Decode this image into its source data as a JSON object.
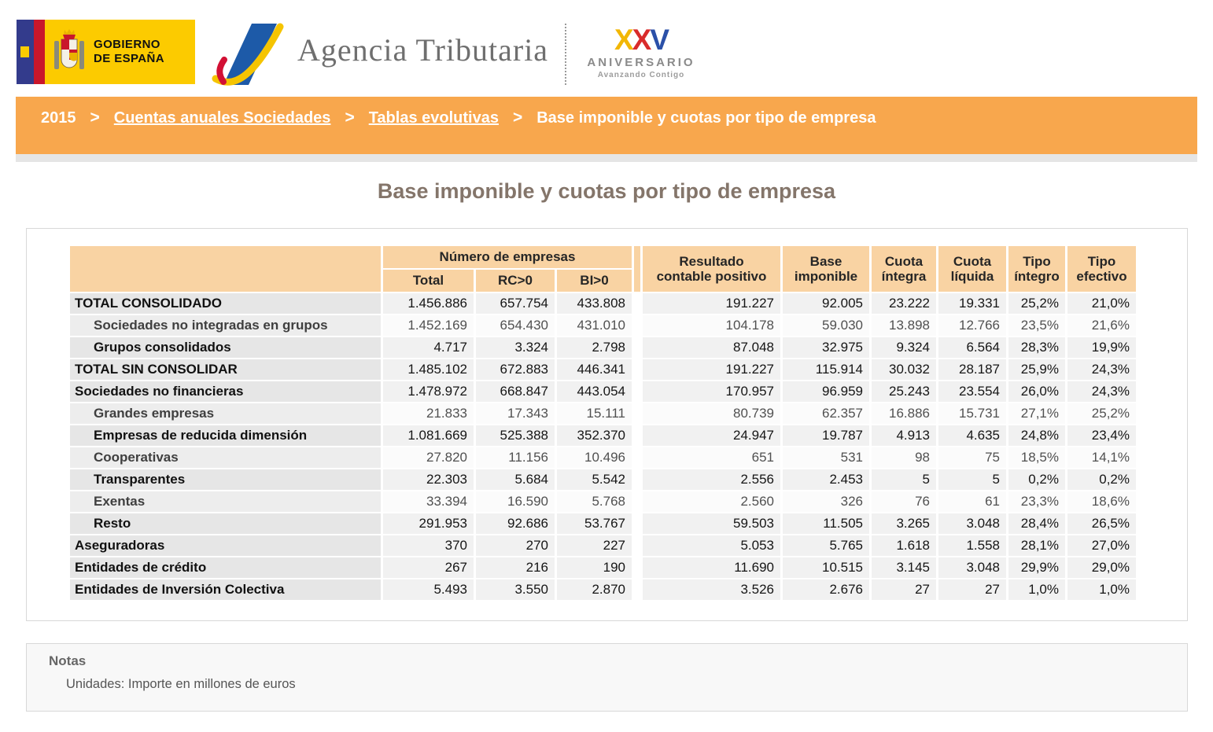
{
  "header": {
    "gobierno_logo": {
      "line1": "GOBIERNO",
      "line2": "DE ESPAÑA"
    },
    "agencia_logo_text": "Agencia Tributaria",
    "anniversary": {
      "x1": "X",
      "x2": "X",
      "v": "V",
      "line1": "ANIVERSARIO",
      "line2": "Avanzando Contigo"
    }
  },
  "breadcrumb": {
    "year": "2015",
    "separator": ">",
    "items": [
      {
        "label": "Cuentas anuales Sociedades",
        "link": true
      },
      {
        "label": "Tablas evolutivas",
        "link": true
      },
      {
        "label": "Base imponible y cuotas por tipo de empresa",
        "link": false
      }
    ]
  },
  "page_title": "Base imponible y cuotas por tipo de empresa",
  "table": {
    "group_header": "Número de empresas",
    "sub_headers": [
      "Total",
      "RC>0",
      "BI>0"
    ],
    "value_headers": [
      [
        "Resultado",
        "contable positivo"
      ],
      [
        "Base",
        "imponible"
      ],
      [
        "Cuota",
        "íntegra"
      ],
      [
        "Cuota",
        "líquida"
      ],
      [
        "Tipo",
        "íntegro"
      ],
      [
        "Tipo",
        "efectivo"
      ]
    ],
    "rows": [
      {
        "label": "TOTAL CONSOLIDADO",
        "indent": false,
        "shade": "dark",
        "values": [
          "1.456.886",
          "657.754",
          "433.808",
          "191.227",
          "92.005",
          "23.222",
          "19.331",
          "25,2%",
          "21,0%"
        ]
      },
      {
        "label": "Sociedades no integradas en grupos",
        "indent": true,
        "shade": "light",
        "values": [
          "1.452.169",
          "654.430",
          "431.010",
          "104.178",
          "59.030",
          "13.898",
          "12.766",
          "23,5%",
          "21,6%"
        ]
      },
      {
        "label": "Grupos consolidados",
        "indent": true,
        "shade": "dark",
        "values": [
          "4.717",
          "3.324",
          "2.798",
          "87.048",
          "32.975",
          "9.324",
          "6.564",
          "28,3%",
          "19,9%"
        ]
      },
      {
        "label": "TOTAL SIN CONSOLIDAR",
        "indent": false,
        "shade": "dark",
        "values": [
          "1.485.102",
          "672.883",
          "446.341",
          "191.227",
          "115.914",
          "30.032",
          "28.187",
          "25,9%",
          "24,3%"
        ]
      },
      {
        "label": "Sociedades no financieras",
        "indent": false,
        "shade": "dark",
        "values": [
          "1.478.972",
          "668.847",
          "443.054",
          "170.957",
          "96.959",
          "25.243",
          "23.554",
          "26,0%",
          "24,3%"
        ]
      },
      {
        "label": "Grandes empresas",
        "indent": true,
        "shade": "light",
        "values": [
          "21.833",
          "17.343",
          "15.111",
          "80.739",
          "62.357",
          "16.886",
          "15.731",
          "27,1%",
          "25,2%"
        ]
      },
      {
        "label": "Empresas de reducida dimensión",
        "indent": true,
        "shade": "dark",
        "values": [
          "1.081.669",
          "525.388",
          "352.370",
          "24.947",
          "19.787",
          "4.913",
          "4.635",
          "24,8%",
          "23,4%"
        ]
      },
      {
        "label": "Cooperativas",
        "indent": true,
        "shade": "light",
        "values": [
          "27.820",
          "11.156",
          "10.496",
          "651",
          "531",
          "98",
          "75",
          "18,5%",
          "14,1%"
        ]
      },
      {
        "label": "Transparentes",
        "indent": true,
        "shade": "dark",
        "values": [
          "22.303",
          "5.684",
          "5.542",
          "2.556",
          "2.453",
          "5",
          "5",
          "0,2%",
          "0,2%"
        ]
      },
      {
        "label": "Exentas",
        "indent": true,
        "shade": "light",
        "values": [
          "33.394",
          "16.590",
          "5.768",
          "2.560",
          "326",
          "76",
          "61",
          "23,3%",
          "18,6%"
        ]
      },
      {
        "label": "Resto",
        "indent": true,
        "shade": "dark",
        "values": [
          "291.953",
          "92.686",
          "53.767",
          "59.503",
          "11.505",
          "3.265",
          "3.048",
          "28,4%",
          "26,5%"
        ]
      },
      {
        "label": "Aseguradoras",
        "indent": false,
        "shade": "dark",
        "values": [
          "370",
          "270",
          "227",
          "5.053",
          "5.765",
          "1.618",
          "1.558",
          "28,1%",
          "27,0%"
        ]
      },
      {
        "label": "Entidades de crédito",
        "indent": false,
        "shade": "dark",
        "values": [
          "267",
          "216",
          "190",
          "11.690",
          "10.515",
          "3.145",
          "3.048",
          "29,9%",
          "29,0%"
        ]
      },
      {
        "label": "Entidades de Inversión Colectiva",
        "indent": false,
        "shade": "dark",
        "values": [
          "5.493",
          "3.550",
          "2.870",
          "3.526",
          "2.676",
          "27",
          "27",
          "1,0%",
          "1,0%"
        ]
      }
    ]
  },
  "notes": {
    "title": "Notas",
    "text": "Unidades: Importe en millones de euros"
  },
  "colors": {
    "nav_orange": "#F8A74D",
    "table_header_peach": "#F9D3A3",
    "title_brown": "#84756A",
    "logo_yellow": "#FCCB00",
    "logo_blue": "#1D5AA8",
    "logo_red": "#D21034",
    "swoosh_yellow": "#F5C400"
  }
}
